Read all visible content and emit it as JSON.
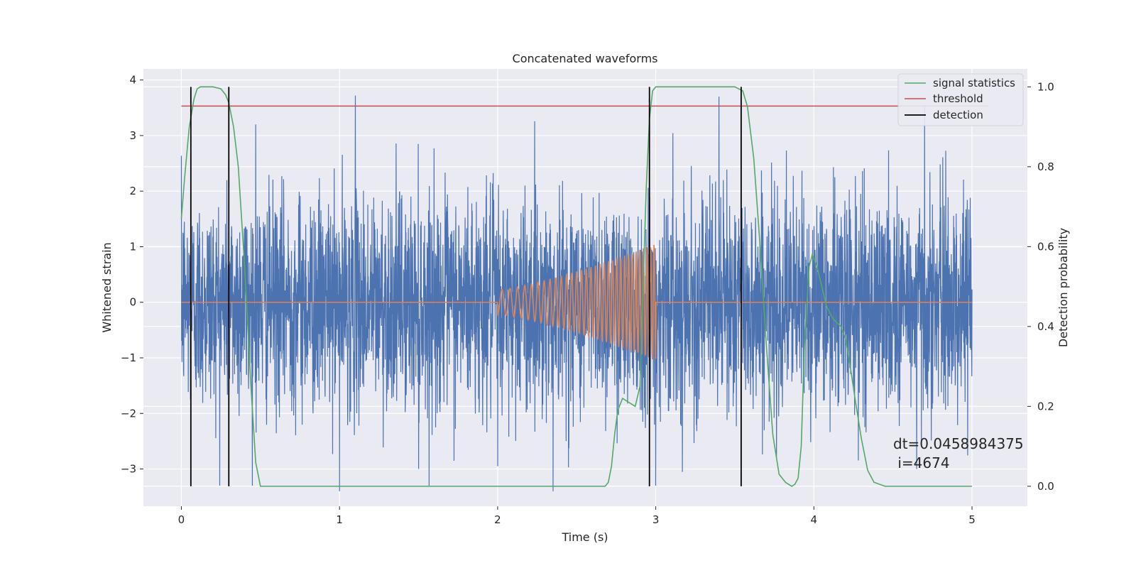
{
  "chart_data": {
    "type": "line",
    "title": "Concatenated waveforms",
    "xlabel": "Time (s)",
    "ylabel": "Whitened strain",
    "y2label": "Detection probability",
    "xlim": [
      -0.24,
      5.35
    ],
    "ylim": [
      -3.67,
      4.2
    ],
    "y2lim": [
      -0.05,
      1.045
    ],
    "grid": true,
    "legend_position": "top-right",
    "x_ticks": [
      0,
      1,
      2,
      3,
      4,
      5
    ],
    "y_ticks": [
      -3,
      -2,
      -1,
      0,
      1,
      2,
      3,
      4
    ],
    "y2_ticks": [
      0.0,
      0.2,
      0.4,
      0.6,
      0.8,
      1.0
    ],
    "x_tick_labels": [
      "0",
      "1",
      "2",
      "3",
      "4",
      "5"
    ],
    "y_tick_labels": [
      "−3",
      "−2",
      "−1",
      "0",
      "1",
      "2",
      "3",
      "4"
    ],
    "y2_tick_labels": [
      "0.0",
      "0.2",
      "0.4",
      "0.6",
      "0.8",
      "1.0"
    ],
    "series": [
      {
        "name": "whitened strain noise",
        "axis": "left",
        "color": "#4c72b0",
        "style": "dense noise, approximately Gaussian, sigma about 1.0, spikes up to about 3.7 and down to about -3.4",
        "x_range": [
          0,
          5
        ],
        "spikes": [
          [
            1.1,
            3.72
          ],
          [
            2.0,
            3.0
          ],
          [
            3.4,
            3.7
          ],
          [
            4.7,
            3.55
          ],
          [
            0.47,
            3.2
          ],
          [
            1.0,
            -3.4
          ],
          [
            2.35,
            -3.4
          ],
          [
            1.5,
            -3.0
          ],
          [
            2.0,
            -2.95
          ],
          [
            3.0,
            -3.3
          ],
          [
            4.65,
            -3.0
          ]
        ]
      },
      {
        "name": "injected waveform",
        "axis": "left",
        "color": "#dd8452",
        "style": "chirp between x=2.0 and x=3.0",
        "chirp_start": 2.0,
        "chirp_end": 3.0,
        "amplitude_start": 0.22,
        "amplitude_end": 1.05
      },
      {
        "name": "signal statistics",
        "axis": "right",
        "color": "#55a868",
        "x": [
          0,
          0.02,
          0.05,
          0.08,
          0.1,
          0.12,
          0.2,
          0.25,
          0.28,
          0.3,
          0.33,
          0.36,
          0.4,
          0.44,
          0.47,
          0.5,
          1.5,
          2.6,
          2.68,
          2.7,
          2.72,
          2.74,
          2.76,
          2.79,
          2.83,
          2.87,
          2.9,
          2.92,
          2.94,
          2.96,
          2.98,
          3.0,
          3.05,
          3.5,
          3.55,
          3.58,
          3.62,
          3.66,
          3.7,
          3.74,
          3.78,
          3.82,
          3.86,
          3.88,
          3.9,
          3.92,
          3.94,
          3.97,
          3.99,
          4.02,
          4.05,
          4.08,
          4.12,
          4.17,
          4.2,
          4.23,
          4.26,
          4.3,
          4.34,
          4.38,
          4.45,
          5.0
        ],
        "y": [
          0.67,
          0.77,
          0.9,
          0.97,
          0.995,
          1.0,
          1.0,
          0.995,
          0.98,
          0.96,
          0.9,
          0.8,
          0.55,
          0.25,
          0.06,
          0.0,
          0.0,
          0.0,
          0.0,
          0.01,
          0.05,
          0.13,
          0.19,
          0.22,
          0.21,
          0.2,
          0.25,
          0.5,
          0.75,
          0.92,
          0.99,
          1.0,
          1.0,
          1.0,
          0.99,
          0.95,
          0.82,
          0.6,
          0.35,
          0.13,
          0.03,
          0.01,
          0.0,
          0.005,
          0.02,
          0.1,
          0.35,
          0.55,
          0.58,
          0.55,
          0.5,
          0.45,
          0.42,
          0.4,
          0.37,
          0.3,
          0.22,
          0.12,
          0.04,
          0.01,
          0.0,
          0.0
        ]
      },
      {
        "name": "threshold",
        "axis": "right",
        "color": "#c44e52",
        "x": [
          0,
          5.1
        ],
        "y": [
          0.952,
          0.952
        ]
      }
    ],
    "detections": {
      "name": "detection",
      "color": "#000000",
      "x": [
        0.06,
        0.3,
        2.96,
        3.54
      ],
      "y2_range": [
        0.0,
        1.0
      ]
    },
    "legend": [
      {
        "label": "signal statistics",
        "color": "#55a868"
      },
      {
        "label": "threshold",
        "color": "#c44e52"
      },
      {
        "label": "detection",
        "color": "#000000"
      }
    ],
    "annotation": {
      "line1": "dt=0.0458984375",
      "line2": " i=4674"
    }
  }
}
